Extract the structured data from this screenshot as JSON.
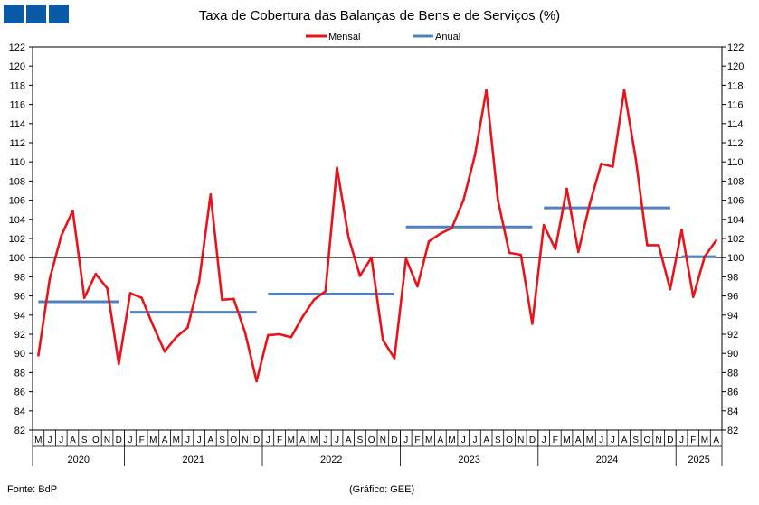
{
  "chart_data": {
    "type": "line",
    "title": "Taxa de Cobertura das Balanças de Bens e de Serviços (%)",
    "xlabel": "",
    "ylabel": "",
    "ylim": [
      82,
      122
    ],
    "yticks": [
      82,
      84,
      86,
      88,
      90,
      92,
      94,
      96,
      98,
      100,
      102,
      104,
      106,
      108,
      110,
      112,
      114,
      116,
      118,
      120,
      122
    ],
    "reference_line": 100,
    "legend_position": "top-center",
    "x_month_labels": [
      "M",
      "J",
      "J",
      "A",
      "S",
      "O",
      "N",
      "D",
      "J",
      "F",
      "M",
      "A",
      "M",
      "J",
      "J",
      "A",
      "S",
      "O",
      "N",
      "D",
      "J",
      "F",
      "M",
      "A",
      "M",
      "J",
      "J",
      "A",
      "S",
      "O",
      "N",
      "D",
      "J",
      "F",
      "M",
      "A",
      "M",
      "J",
      "J",
      "A",
      "S",
      "O",
      "N",
      "D",
      "J",
      "F",
      "M",
      "A",
      "M",
      "J",
      "J",
      "A",
      "S",
      "O",
      "N",
      "D",
      "J",
      "F",
      "M",
      "A"
    ],
    "x_year_labels": [
      {
        "label": "2020",
        "start": 0,
        "end": 7
      },
      {
        "label": "2021",
        "start": 8,
        "end": 19
      },
      {
        "label": "2022",
        "start": 20,
        "end": 31
      },
      {
        "label": "2023",
        "start": 32,
        "end": 43
      },
      {
        "label": "2024",
        "start": 44,
        "end": 55
      },
      {
        "label": "2025",
        "start": 56,
        "end": 59
      }
    ],
    "series": [
      {
        "name": "Mensal",
        "color": "#e8141c",
        "values": [
          89.8,
          97.8,
          102.3,
          104.9,
          95.8,
          98.3,
          96.8,
          88.9,
          96.3,
          95.8,
          92.9,
          90.2,
          91.7,
          92.7,
          97.5,
          106.6,
          95.6,
          95.7,
          92.2,
          87.1,
          91.9,
          92.0,
          91.7,
          93.8,
          95.6,
          96.5,
          109.4,
          102.1,
          98.1,
          100.0,
          91.4,
          89.5,
          99.9,
          97.0,
          101.7,
          102.5,
          103.1,
          106.0,
          110.7,
          117.5,
          106.0,
          100.5,
          100.3,
          93.1,
          103.4,
          100.9,
          107.2,
          100.6,
          105.6,
          109.8,
          109.5,
          117.5,
          110.3,
          101.3,
          101.3,
          96.7,
          102.9,
          95.9,
          100.1,
          101.8
        ]
      },
      {
        "name": "Anual",
        "color": "#4f81bd",
        "segments": [
          {
            "year": "2020",
            "start": 0,
            "end": 7,
            "value": 95.4
          },
          {
            "year": "2021",
            "start": 8,
            "end": 19,
            "value": 94.3
          },
          {
            "year": "2022",
            "start": 20,
            "end": 31,
            "value": 96.2
          },
          {
            "year": "2023",
            "start": 32,
            "end": 43,
            "value": 103.2
          },
          {
            "year": "2024",
            "start": 44,
            "end": 55,
            "value": 105.2
          },
          {
            "year": "2025",
            "start": 56,
            "end": 59,
            "value": 100.1
          }
        ]
      }
    ]
  },
  "footer": {
    "source": "Fonte: BdP",
    "credit": "(Gráfico: GEE)"
  }
}
